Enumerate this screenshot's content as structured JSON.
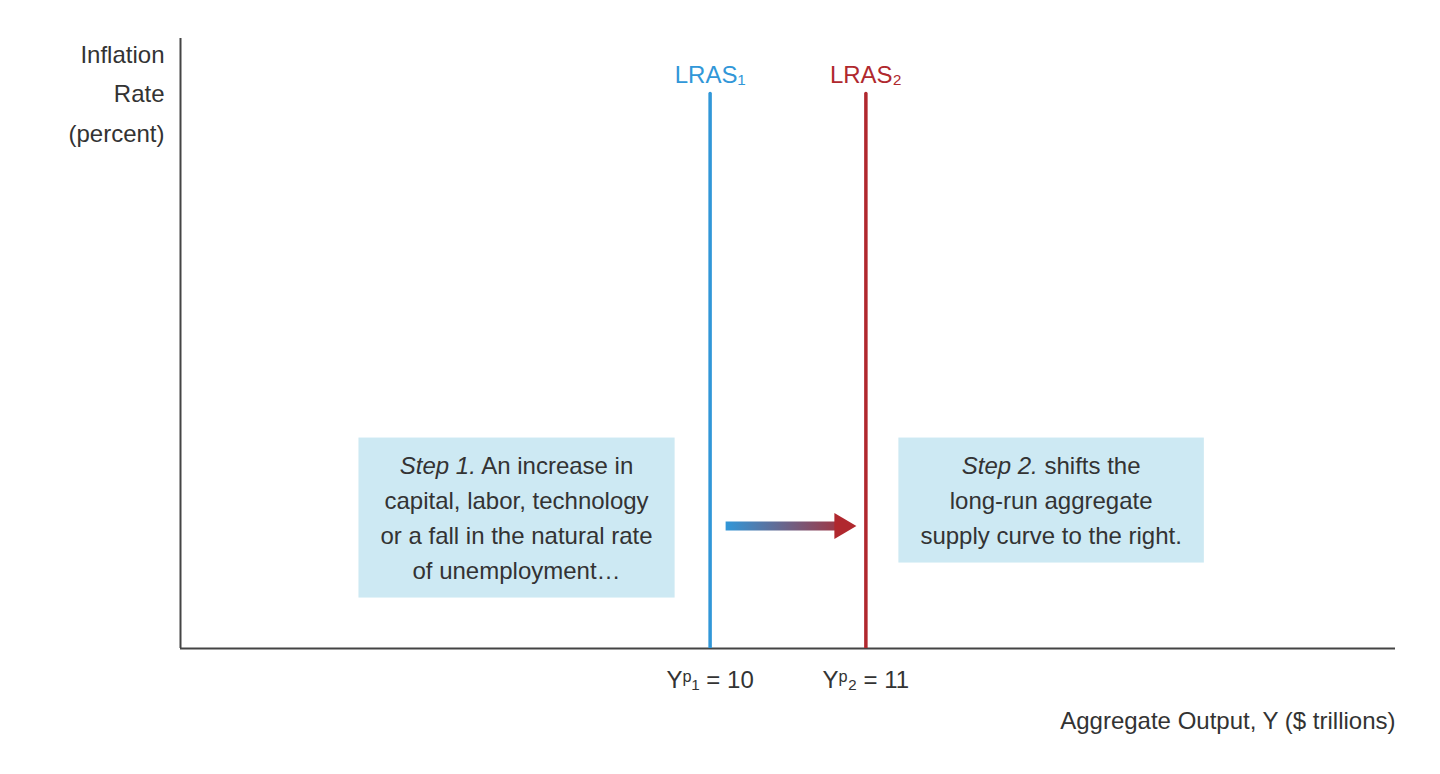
{
  "chart_data": {
    "type": "line",
    "ylabel": "Inflation\nRate\n(percent)",
    "xlabel": "Aggregate Output, Y ($ trillions)",
    "xlim": [
      6.6,
      14.4
    ],
    "xticks": [
      {
        "value": 10,
        "label": "Yᵖ₁ = 10"
      },
      {
        "value": 11,
        "label": "Yᵖ₂ = 11"
      }
    ],
    "ylim": [
      0,
      10
    ],
    "tick_labels": "x",
    "grid": false,
    "series": [
      {
        "name": "LRAS₁",
        "color": "#3197d8",
        "x": [
          10,
          10
        ],
        "values": [
          0,
          9.1
        ]
      },
      {
        "name": "LRAS₂",
        "color": "#b0282e",
        "x": [
          11,
          11
        ],
        "values": [
          0,
          9.1
        ]
      }
    ],
    "annotations": [
      "Step 1. An increase in\ncapital, labor, technology\nor a fall in the natural rate\nof unemployment…",
      "Step 2. shifts the\nlong-run aggregate\nsupply curve to the right."
    ]
  }
}
